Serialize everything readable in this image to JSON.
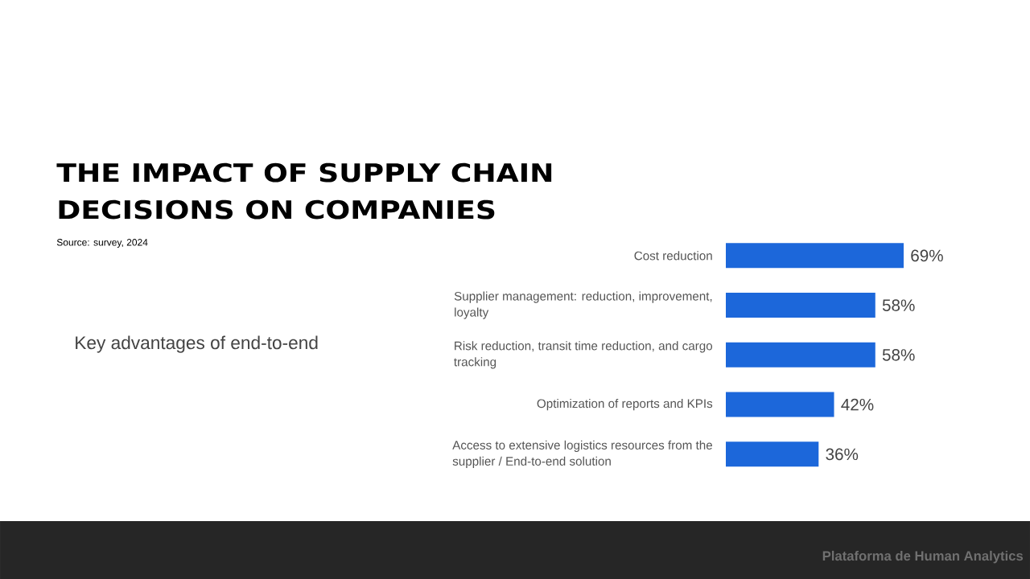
{
  "chart_data": {
    "type": "bar",
    "orientation": "horizontal",
    "title": "THE IMPACT OF SUPPLY CHAIN DECISIONS ON COMPANIES",
    "subtitle": "Key advantages of end-to-end",
    "annotations": [
      "Source: survey, 2024",
      "Plataforma de Human Analytics"
    ],
    "categories": [
      "Cost reduction",
      "Supplier management: reduction, improvement, loyalty",
      "Risk reduction, transit time reduction, and cargo tracking",
      "Optimization of reports and KPIs",
      "Access to extensive logistics resources from the supplier / End-to-end solution"
    ],
    "values": [
      69,
      58,
      58,
      42,
      36
    ],
    "value_labels": [
      "69%",
      "58%",
      "58%",
      "42%",
      "36%"
    ],
    "color": "#1c67da",
    "tick_labels": "y"
  }
}
